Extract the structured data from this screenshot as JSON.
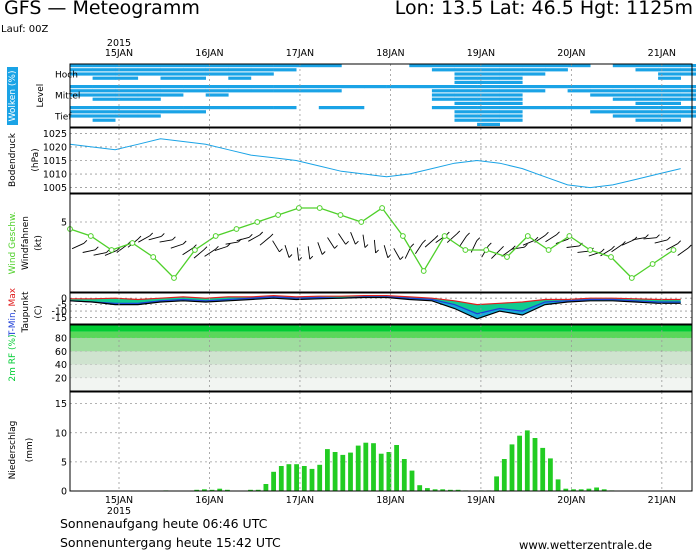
{
  "header": {
    "title": "GFS  —  Meteogramm",
    "location": "Lon: 13.5  Lat: 46.5  Hgt: 1125m",
    "run": "Lauf: 00Z"
  },
  "time_axis": {
    "year": "2015",
    "labels": [
      "15JAN",
      "16JAN",
      "17JAN",
      "18JAN",
      "19JAN",
      "20JAN",
      "21JAN"
    ]
  },
  "clouds_panel": {
    "side_label": "Wolken (%)",
    "axis_label": "Level",
    "levels": [
      "Hoch",
      "Mittel",
      "Tief"
    ]
  },
  "pressure_panel": {
    "label": "Bodendruck",
    "unit": "(hPa)",
    "ticks": [
      "1025",
      "1020",
      "1015",
      "1010",
      "1005"
    ]
  },
  "wind_panel": {
    "label_colored": "Wind Geschw.",
    "label": "Windfahnen",
    "unit": "(kt)",
    "ticks": [
      "5"
    ]
  },
  "temp_panel": {
    "label_parts": [
      "T-",
      "Min",
      ", ",
      "Max"
    ],
    "label": "Taupunkt",
    "unit": "(C)",
    "ticks": [
      "0",
      "-5",
      "-10",
      "-15"
    ]
  },
  "rh_panel": {
    "label": "2m RF (%)",
    "ticks": [
      "80",
      "60",
      "40",
      "20"
    ]
  },
  "precip_panel": {
    "label": "Niederschlag",
    "unit": "(mm)",
    "ticks": [
      "15",
      "10",
      "5",
      "0"
    ]
  },
  "footer": {
    "sunrise": "Sonnenaufgang heute 06:46 UTC",
    "sunset": "Sonnenuntergang heute 15:42 UTC",
    "source": "www.wetterzentrale.de"
  },
  "colors": {
    "cloud": "#1aa3e6",
    "pressure": "#1aa3e6",
    "wind": "#4fd02a",
    "tmin": "#1e3fd8",
    "tmax": "#e01e1e",
    "dew": "#1aa3e6",
    "fill": "#10cc90",
    "precip": "#22cc22",
    "rh_dark": "#00cc33"
  },
  "chart_data": [
    {
      "type": "heatmap",
      "name": "Wolken",
      "rows": [
        "Hoch",
        "Mittel",
        "Tief"
      ],
      "x_start_hour": 0,
      "step_hours": 6,
      "values": [
        [
          60,
          70,
          80,
          60,
          70,
          80,
          60,
          70,
          60,
          40,
          20,
          10,
          5,
          0,
          0,
          10,
          40,
          90,
          100,
          100,
          60,
          30,
          10,
          0,
          10,
          40,
          80,
          60
        ],
        [
          60,
          70,
          80,
          70,
          50,
          40,
          60,
          40,
          30,
          30,
          40,
          30,
          20,
          20,
          10,
          20,
          70,
          100,
          100,
          100,
          40,
          20,
          40,
          60,
          80,
          90,
          90,
          70
        ],
        [
          50,
          70,
          60,
          60,
          30,
          40,
          20,
          20,
          10,
          10,
          0,
          10,
          10,
          0,
          0,
          0,
          20,
          80,
          100,
          80,
          20,
          10,
          10,
          30,
          60,
          80,
          70,
          60
        ]
      ]
    },
    {
      "type": "line",
      "name": "Bodendruck",
      "x_start_hour": 0,
      "step_hours": 6,
      "ylim": [
        1003,
        1027
      ],
      "values": [
        1021,
        1020,
        1019,
        1021,
        1023,
        1022,
        1021,
        1019,
        1017,
        1016,
        1015,
        1013,
        1011,
        1010,
        1009,
        1010,
        1012,
        1014,
        1015,
        1014,
        1012,
        1009,
        1006,
        1005,
        1006,
        1008,
        1010,
        1012
      ]
    },
    {
      "type": "line",
      "name": "Wind",
      "x_start_hour": 0,
      "step_hours": 6,
      "ylim": [
        0,
        7
      ],
      "values": [
        4.5,
        4,
        3,
        3.5,
        2.5,
        1,
        3,
        4,
        4.5,
        5,
        5.5,
        6,
        6,
        5.5,
        5,
        6,
        4,
        1.5,
        4,
        3,
        3,
        2.5,
        4,
        3,
        4,
        3,
        2.5,
        1,
        2,
        3
      ]
    },
    {
      "type": "area",
      "name": "Temperatur",
      "x_start_hour": 0,
      "step_hours": 6,
      "ylim": [
        -20,
        4
      ],
      "series": [
        {
          "name": "Max",
          "values": [
            -0.5,
            -0.5,
            0,
            -1,
            0,
            1,
            0,
            1,
            1,
            2,
            1,
            1.5,
            1.5,
            2,
            2,
            1,
            0,
            -2,
            -5,
            -4,
            -3,
            -1,
            -1,
            0,
            0,
            -0.5,
            -1,
            -1
          ]
        },
        {
          "name": "Min",
          "values": [
            -2,
            -3,
            -4,
            -4,
            -2,
            -1,
            -2,
            -1,
            0,
            1,
            0,
            0.5,
            0,
            1,
            1,
            0,
            -1,
            -5,
            -12,
            -8,
            -10,
            -3,
            -2,
            -1,
            -1,
            -2,
            -3,
            -3
          ]
        },
        {
          "name": "Taupunkt",
          "values": [
            -2,
            -3,
            -5,
            -5,
            -3,
            -2,
            -3,
            -2,
            -1,
            0,
            -1,
            -0.5,
            0,
            0.5,
            0.5,
            -1,
            -2,
            -8,
            -16,
            -10,
            -13,
            -5,
            -3,
            -2,
            -2,
            -3,
            -4,
            -4
          ]
        }
      ]
    },
    {
      "type": "area",
      "name": "2m RF",
      "ylim": [
        0,
        100
      ],
      "values": [
        95,
        93,
        94,
        92,
        95,
        93,
        94,
        92,
        93,
        94,
        95,
        93,
        96,
        94
      ]
    },
    {
      "type": "bar",
      "name": "Niederschlag",
      "x_start_hour": 0,
      "step_hours": 3,
      "ylim": [
        0,
        17
      ],
      "values": [
        0,
        0,
        0,
        0,
        0,
        0,
        0,
        0,
        0,
        0,
        0,
        0.1,
        0,
        0,
        0,
        0.2,
        0.3,
        0.2,
        0.4,
        0.2,
        0,
        0,
        0.2,
        0.2,
        1.2,
        3.3,
        4.3,
        4.6,
        4.6,
        4.3,
        3.8,
        4.5,
        7.2,
        6.7,
        6.2,
        6.6,
        7.8,
        8.3,
        8.2,
        6.4,
        6.7,
        7.9,
        5.5,
        3.5,
        1.0,
        0.5,
        0.3,
        0.3,
        0.2,
        0.2,
        0.1,
        0,
        0.1,
        0.1,
        2.5,
        5.5,
        8.0,
        9.5,
        10.4,
        9.1,
        7.4,
        5.6,
        2.0,
        0.4,
        0.3,
        0.3,
        0.4,
        0.6,
        0.3,
        0.1
      ]
    }
  ]
}
